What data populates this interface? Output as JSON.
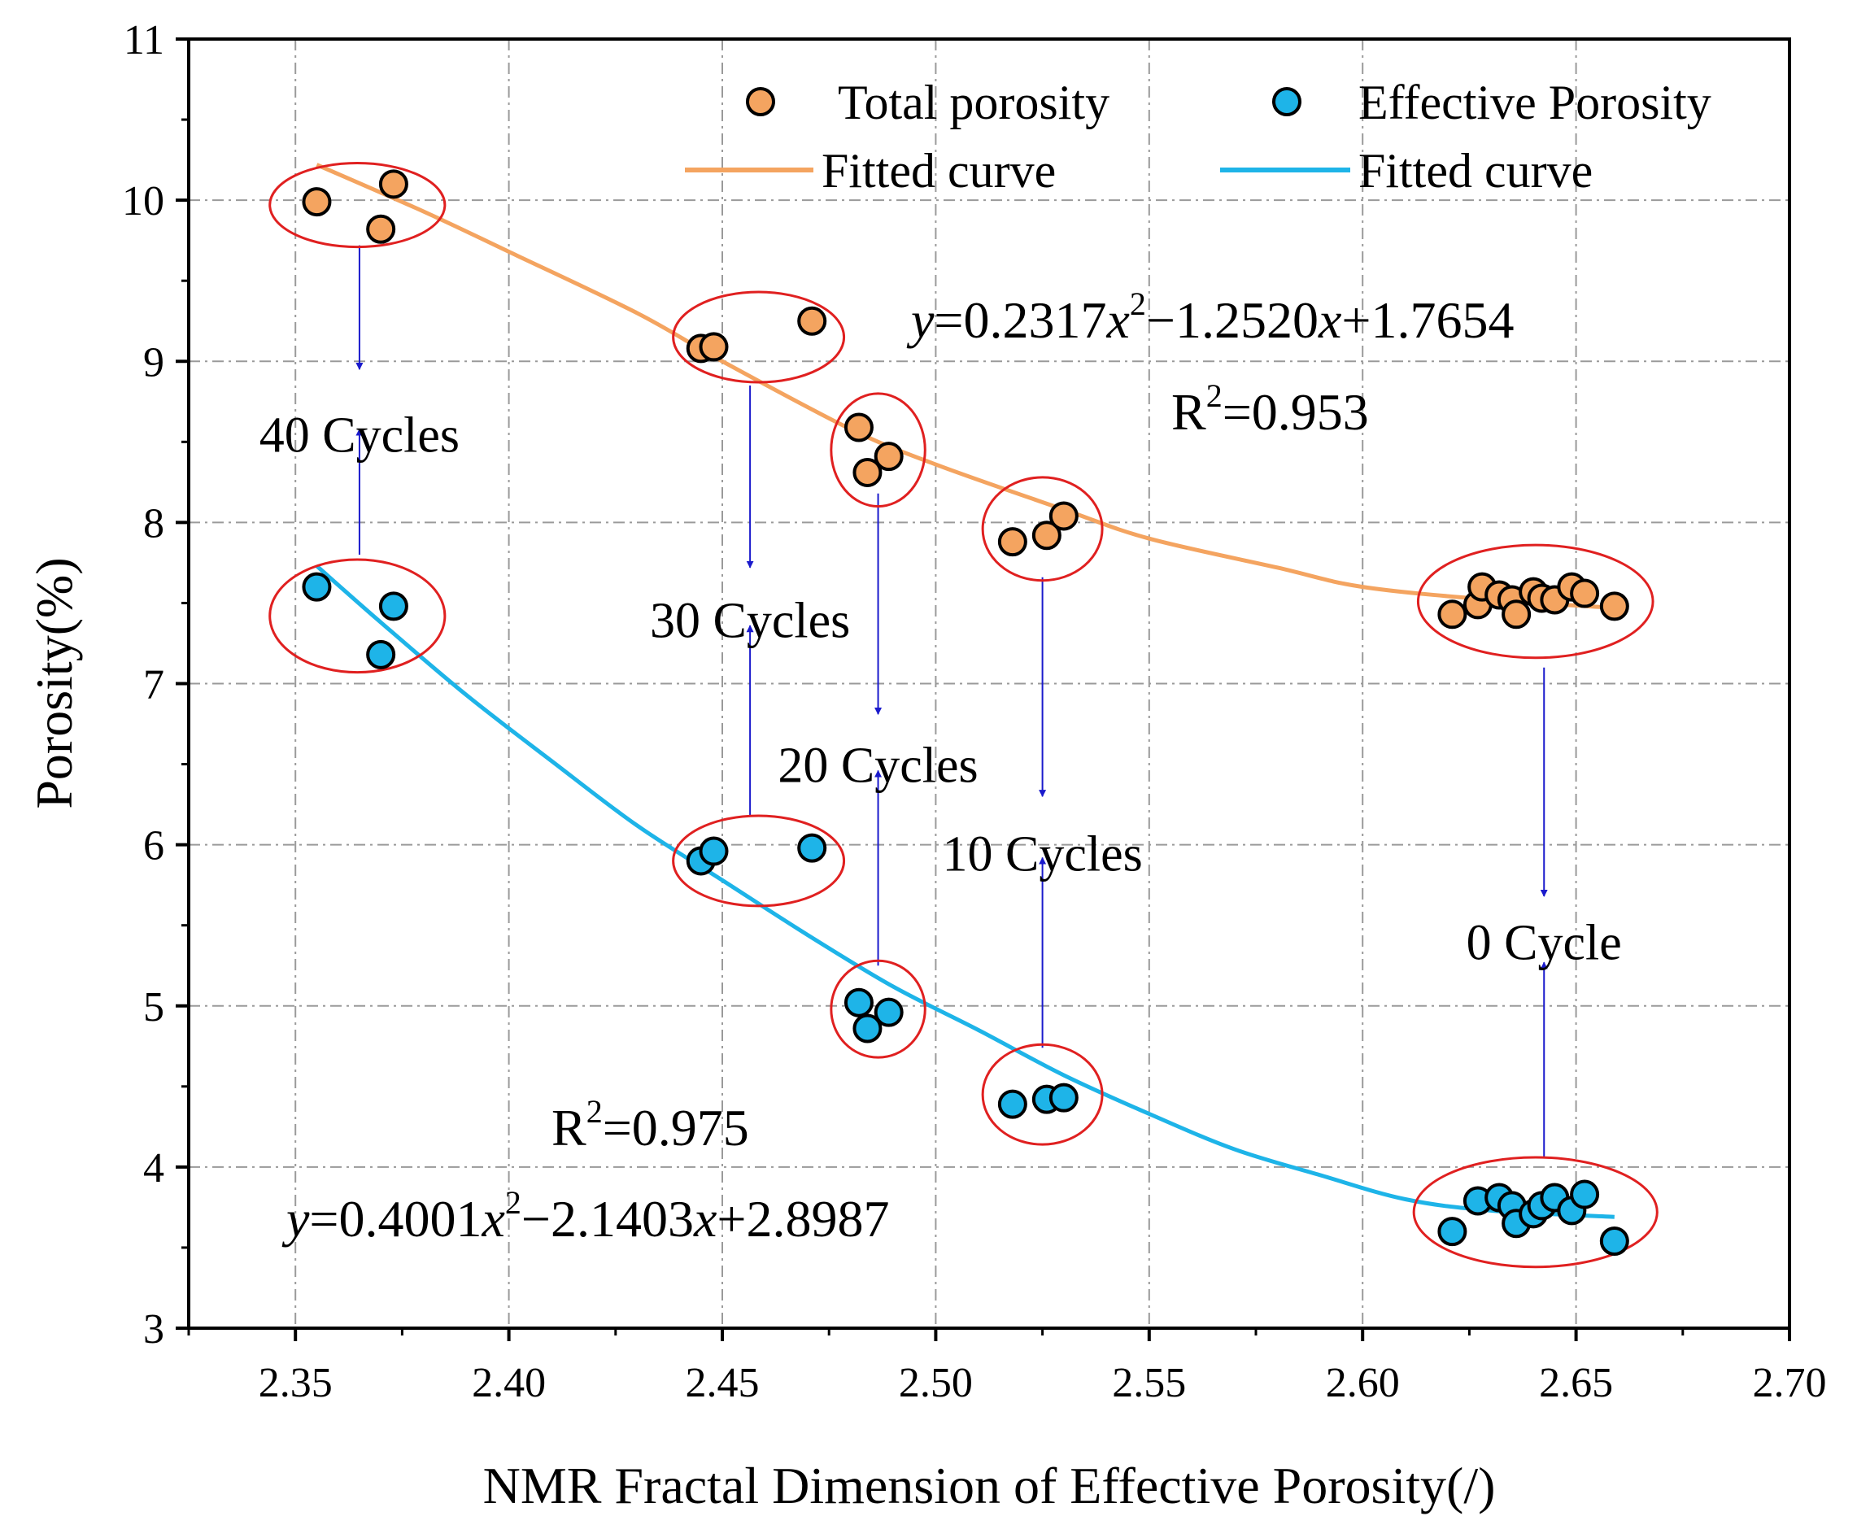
{
  "chart_data": {
    "type": "scatter",
    "title": "",
    "xlabel": "NMR Fractal Dimension of Effective Porosity(/)",
    "ylabel": "Porosity(%)",
    "xlim": [
      2.325,
      2.7
    ],
    "ylim": [
      3,
      11
    ],
    "x_ticks": [
      2.35,
      2.4,
      2.45,
      2.5,
      2.55,
      2.6,
      2.65,
      2.7
    ],
    "x_tick_labels": [
      "2.35",
      "2.40",
      "2.45",
      "2.50",
      "2.55",
      "2.60",
      "2.65",
      "2.70"
    ],
    "y_ticks": [
      3,
      4,
      5,
      6,
      7,
      8,
      9,
      10,
      11
    ],
    "y_tick_labels": [
      "3",
      "4",
      "5",
      "6",
      "7",
      "8",
      "9",
      "10",
      "11"
    ],
    "grid": true,
    "legend_position": "top-right",
    "series": [
      {
        "name": "Total porosity",
        "kind": "scatter",
        "color": "#F4A460",
        "points": [
          [
            2.355,
            9.99
          ],
          [
            2.37,
            9.82
          ],
          [
            2.373,
            10.1
          ],
          [
            2.445,
            9.08
          ],
          [
            2.448,
            9.09
          ],
          [
            2.471,
            9.25
          ],
          [
            2.482,
            8.59
          ],
          [
            2.484,
            8.31
          ],
          [
            2.489,
            8.41
          ],
          [
            2.518,
            7.88
          ],
          [
            2.526,
            7.92
          ],
          [
            2.53,
            8.04
          ],
          [
            2.621,
            7.43
          ],
          [
            2.627,
            7.49
          ],
          [
            2.628,
            7.6
          ],
          [
            2.632,
            7.55
          ],
          [
            2.635,
            7.52
          ],
          [
            2.636,
            7.43
          ],
          [
            2.64,
            7.57
          ],
          [
            2.642,
            7.53
          ],
          [
            2.645,
            7.52
          ],
          [
            2.649,
            7.6
          ],
          [
            2.652,
            7.56
          ],
          [
            2.659,
            7.48
          ]
        ]
      },
      {
        "name": "Effective Porosity",
        "kind": "scatter",
        "color": "#1EB4E8",
        "points": [
          [
            2.355,
            7.6
          ],
          [
            2.37,
            7.18
          ],
          [
            2.373,
            7.48
          ],
          [
            2.445,
            5.9
          ],
          [
            2.448,
            5.96
          ],
          [
            2.471,
            5.98
          ],
          [
            2.482,
            5.02
          ],
          [
            2.484,
            4.86
          ],
          [
            2.489,
            4.96
          ],
          [
            2.518,
            4.39
          ],
          [
            2.526,
            4.42
          ],
          [
            2.53,
            4.43
          ],
          [
            2.621,
            3.6
          ],
          [
            2.627,
            3.79
          ],
          [
            2.632,
            3.81
          ],
          [
            2.635,
            3.76
          ],
          [
            2.636,
            3.65
          ],
          [
            2.64,
            3.71
          ],
          [
            2.642,
            3.76
          ],
          [
            2.645,
            3.81
          ],
          [
            2.649,
            3.73
          ],
          [
            2.652,
            3.83
          ],
          [
            2.659,
            3.54
          ]
        ]
      },
      {
        "name": "Fitted curve",
        "kind": "line",
        "color": "#F4A460",
        "curve": [
          [
            2.355,
            10.22
          ],
          [
            2.38,
            9.93
          ],
          [
            2.4,
            9.68
          ],
          [
            2.43,
            9.3
          ],
          [
            2.45,
            9.0
          ],
          [
            2.48,
            8.58
          ],
          [
            2.5,
            8.36
          ],
          [
            2.53,
            8.08
          ],
          [
            2.55,
            7.9
          ],
          [
            2.58,
            7.72
          ],
          [
            2.6,
            7.6
          ],
          [
            2.63,
            7.52
          ],
          [
            2.659,
            7.47
          ]
        ]
      },
      {
        "name": "Fitted curve",
        "kind": "line",
        "color": "#1EB4E8",
        "curve": [
          [
            2.355,
            7.73
          ],
          [
            2.37,
            7.38
          ],
          [
            2.39,
            6.93
          ],
          [
            2.41,
            6.52
          ],
          [
            2.43,
            6.12
          ],
          [
            2.45,
            5.78
          ],
          [
            2.47,
            5.44
          ],
          [
            2.49,
            5.12
          ],
          [
            2.51,
            4.85
          ],
          [
            2.53,
            4.57
          ],
          [
            2.55,
            4.33
          ],
          [
            2.57,
            4.11
          ],
          [
            2.59,
            3.95
          ],
          [
            2.61,
            3.8
          ],
          [
            2.63,
            3.73
          ],
          [
            2.659,
            3.69
          ]
        ]
      }
    ],
    "annotations": {
      "cycles": [
        {
          "label": "40 Cycles",
          "x": 2.365,
          "top_from": 9.72,
          "top_to": 8.95,
          "bottom_from": 7.8,
          "bottom_to": 8.58,
          "label_y": 8.55
        },
        {
          "label": "30 Cycles",
          "x": 2.4565,
          "top_from": 8.85,
          "top_to": 7.72,
          "bottom_from": 6.18,
          "bottom_to": 7.36,
          "label_y": 7.4
        },
        {
          "label": "20 Cycles",
          "x": 2.4865,
          "top_from": 8.18,
          "top_to": 6.81,
          "bottom_from": 5.25,
          "bottom_to": 6.46,
          "label_y": 6.5
        },
        {
          "label": "10 Cycles",
          "x": 2.525,
          "top_from": 7.66,
          "top_to": 6.3,
          "bottom_from": 4.74,
          "bottom_to": 5.92,
          "label_y": 5.95
        },
        {
          "label": "0 Cycle",
          "x": 2.6425,
          "top_from": 7.1,
          "top_to": 5.68,
          "bottom_from": 4.06,
          "bottom_to": 5.27,
          "label_y": 5.4
        }
      ],
      "ellipses": [
        {
          "group": "40 Cycles total",
          "cx": 2.3645,
          "cy": 9.97,
          "rx": 0.0205,
          "ry": 0.26
        },
        {
          "group": "30 Cycles total",
          "cx": 2.4585,
          "cy": 9.15,
          "rx": 0.02,
          "ry": 0.28
        },
        {
          "group": "20 Cycles total",
          "cx": 2.4865,
          "cy": 8.45,
          "rx": 0.011,
          "ry": 0.35
        },
        {
          "group": "10 Cycles total",
          "cx": 2.525,
          "cy": 7.96,
          "rx": 0.014,
          "ry": 0.32
        },
        {
          "group": "0 Cycle total",
          "cx": 2.6405,
          "cy": 7.51,
          "rx": 0.0275,
          "ry": 0.35
        },
        {
          "group": "40 Cycles effective",
          "cx": 2.3645,
          "cy": 7.42,
          "rx": 0.0205,
          "ry": 0.35
        },
        {
          "group": "30 Cycles effective",
          "cx": 2.4585,
          "cy": 5.9,
          "rx": 0.02,
          "ry": 0.28
        },
        {
          "group": "20 Cycles effective",
          "cx": 2.4865,
          "cy": 4.98,
          "rx": 0.011,
          "ry": 0.3
        },
        {
          "group": "10 Cycles effective",
          "cx": 2.525,
          "cy": 4.45,
          "rx": 0.014,
          "ry": 0.31
        },
        {
          "group": "0 Cycle effective",
          "cx": 2.6405,
          "cy": 3.72,
          "rx": 0.0285,
          "ry": 0.34
        }
      ]
    },
    "equations": {
      "total": {
        "lead": "y",
        "a": "=0.2317",
        "x1": "x",
        "pow": "2",
        "b": "−1.2520",
        "x2": "x",
        "c": "+1.7654",
        "r2_r": "R",
        "r2_pow": "2",
        "r2_val": "=0.953"
      },
      "effective": {
        "lead": "y",
        "a": "=0.4001",
        "x1": "x",
        "pow": "2",
        "b": "−2.1403",
        "x2": "x",
        "c": "+2.8987",
        "r2_r": "R",
        "r2_pow": "2",
        "r2_val": "=0.975"
      }
    },
    "legend": [
      {
        "label": "Total porosity",
        "kind": "marker",
        "color": "#F4A460"
      },
      {
        "label": "Effective Porosity",
        "kind": "marker",
        "color": "#1EB4E8"
      },
      {
        "label": "Fitted curve",
        "kind": "line",
        "color": "#F4A460"
      },
      {
        "label": "Fitted curve",
        "kind": "line",
        "color": "#1EB4E8"
      }
    ],
    "colors": {
      "ellipse": "#E02020",
      "arrow": "#1A1ACC",
      "grid": "#9A9A9A"
    }
  }
}
